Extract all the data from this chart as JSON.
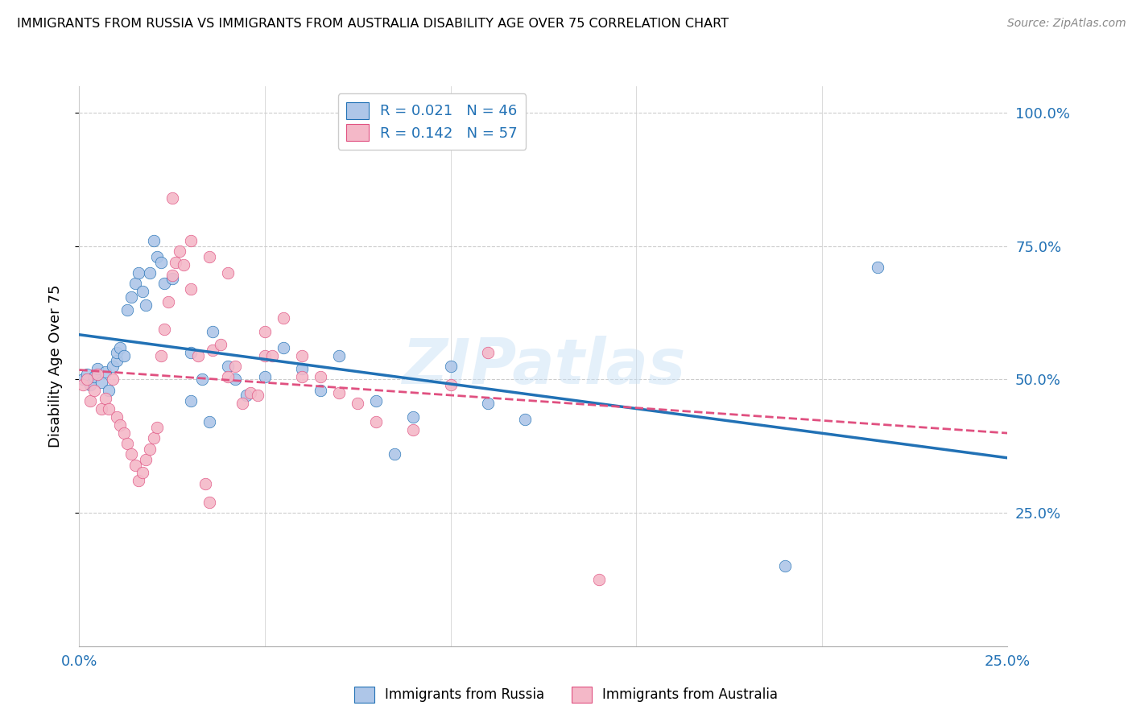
{
  "title": "IMMIGRANTS FROM RUSSIA VS IMMIGRANTS FROM AUSTRALIA DISABILITY AGE OVER 75 CORRELATION CHART",
  "source": "Source: ZipAtlas.com",
  "ylabel": "Disability Age Over 75",
  "xlim": [
    0.0,
    0.25
  ],
  "ylim": [
    0.0,
    1.05
  ],
  "watermark": "ZIPatlas",
  "legend": {
    "russia_R": "0.021",
    "russia_N": "46",
    "australia_R": "0.142",
    "australia_N": "57"
  },
  "russia_color": "#aec6e8",
  "russia_line_color": "#2171b5",
  "australia_color": "#f4b8c8",
  "australia_line_color": "#e05080",
  "russia_scatter": [
    [
      0.001,
      0.5
    ],
    [
      0.002,
      0.51
    ],
    [
      0.003,
      0.49
    ],
    [
      0.004,
      0.505
    ],
    [
      0.005,
      0.52
    ],
    [
      0.006,
      0.495
    ],
    [
      0.007,
      0.515
    ],
    [
      0.008,
      0.48
    ],
    [
      0.009,
      0.525
    ],
    [
      0.01,
      0.535
    ],
    [
      0.01,
      0.55
    ],
    [
      0.011,
      0.56
    ],
    [
      0.012,
      0.545
    ],
    [
      0.013,
      0.63
    ],
    [
      0.014,
      0.655
    ],
    [
      0.015,
      0.68
    ],
    [
      0.016,
      0.7
    ],
    [
      0.017,
      0.665
    ],
    [
      0.018,
      0.64
    ],
    [
      0.019,
      0.7
    ],
    [
      0.02,
      0.76
    ],
    [
      0.021,
      0.73
    ],
    [
      0.022,
      0.72
    ],
    [
      0.023,
      0.68
    ],
    [
      0.025,
      0.69
    ],
    [
      0.03,
      0.55
    ],
    [
      0.03,
      0.46
    ],
    [
      0.033,
      0.5
    ],
    [
      0.035,
      0.42
    ],
    [
      0.036,
      0.59
    ],
    [
      0.04,
      0.525
    ],
    [
      0.042,
      0.5
    ],
    [
      0.045,
      0.47
    ],
    [
      0.05,
      0.505
    ],
    [
      0.055,
      0.56
    ],
    [
      0.06,
      0.52
    ],
    [
      0.065,
      0.48
    ],
    [
      0.07,
      0.545
    ],
    [
      0.08,
      0.46
    ],
    [
      0.085,
      0.36
    ],
    [
      0.09,
      0.43
    ],
    [
      0.1,
      0.525
    ],
    [
      0.11,
      0.455
    ],
    [
      0.12,
      0.425
    ],
    [
      0.19,
      0.15
    ],
    [
      0.215,
      0.71
    ]
  ],
  "australia_scatter": [
    [
      0.001,
      0.49
    ],
    [
      0.002,
      0.5
    ],
    [
      0.003,
      0.46
    ],
    [
      0.004,
      0.48
    ],
    [
      0.005,
      0.51
    ],
    [
      0.006,
      0.445
    ],
    [
      0.007,
      0.465
    ],
    [
      0.008,
      0.445
    ],
    [
      0.009,
      0.5
    ],
    [
      0.01,
      0.43
    ],
    [
      0.011,
      0.415
    ],
    [
      0.012,
      0.4
    ],
    [
      0.013,
      0.38
    ],
    [
      0.014,
      0.36
    ],
    [
      0.015,
      0.34
    ],
    [
      0.016,
      0.31
    ],
    [
      0.017,
      0.325
    ],
    [
      0.018,
      0.35
    ],
    [
      0.019,
      0.37
    ],
    [
      0.02,
      0.39
    ],
    [
      0.021,
      0.41
    ],
    [
      0.022,
      0.545
    ],
    [
      0.023,
      0.595
    ],
    [
      0.024,
      0.645
    ],
    [
      0.025,
      0.695
    ],
    [
      0.026,
      0.72
    ],
    [
      0.027,
      0.74
    ],
    [
      0.028,
      0.715
    ],
    [
      0.03,
      0.67
    ],
    [
      0.032,
      0.545
    ],
    [
      0.034,
      0.305
    ],
    [
      0.036,
      0.555
    ],
    [
      0.038,
      0.565
    ],
    [
      0.04,
      0.505
    ],
    [
      0.042,
      0.525
    ],
    [
      0.044,
      0.455
    ],
    [
      0.046,
      0.475
    ],
    [
      0.048,
      0.47
    ],
    [
      0.05,
      0.545
    ],
    [
      0.052,
      0.545
    ],
    [
      0.055,
      0.615
    ],
    [
      0.06,
      0.505
    ],
    [
      0.065,
      0.505
    ],
    [
      0.07,
      0.475
    ],
    [
      0.075,
      0.455
    ],
    [
      0.08,
      0.42
    ],
    [
      0.09,
      0.405
    ],
    [
      0.025,
      0.84
    ],
    [
      0.03,
      0.76
    ],
    [
      0.035,
      0.73
    ],
    [
      0.04,
      0.7
    ],
    [
      0.05,
      0.59
    ],
    [
      0.06,
      0.545
    ],
    [
      0.14,
      0.125
    ],
    [
      0.035,
      0.27
    ],
    [
      0.1,
      0.49
    ],
    [
      0.11,
      0.55
    ]
  ]
}
